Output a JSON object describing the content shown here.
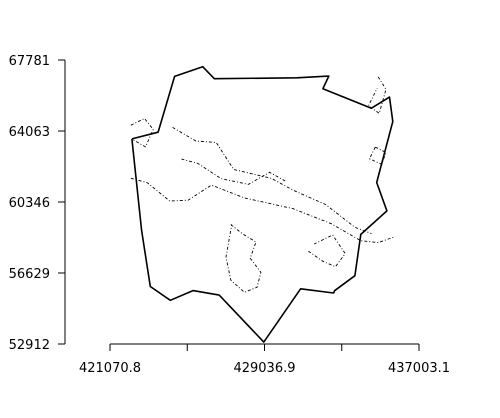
{
  "chart_data": {
    "type": "map",
    "x_axis": {
      "ticks": [
        421070.8,
        425053.85,
        429036.9,
        433020.0,
        437003.1
      ],
      "labels": [
        "421070.8",
        "",
        "429036.9",
        "",
        "437003.1"
      ]
    },
    "y_axis": {
      "ticks": [
        52912,
        56629,
        60346,
        64063,
        67781
      ],
      "labels": [
        "52912",
        "56629",
        "60346",
        "64063",
        "67781"
      ]
    },
    "xlim": [
      419000,
      437600
    ],
    "ylim": [
      52912,
      67781
    ],
    "boundary": [
      [
        422200,
        63650
      ],
      [
        423550,
        64000
      ],
      [
        424400,
        66920
      ],
      [
        425850,
        67430
      ],
      [
        426450,
        66800
      ],
      [
        430700,
        66850
      ],
      [
        432350,
        66940
      ],
      [
        432050,
        66280
      ],
      [
        434550,
        65260
      ],
      [
        435480,
        65840
      ],
      [
        435650,
        64560
      ],
      [
        434820,
        61370
      ],
      [
        435350,
        59880
      ],
      [
        434000,
        58650
      ],
      [
        433700,
        56490
      ],
      [
        432650,
        55700
      ],
      [
        432600,
        55580
      ],
      [
        430900,
        55800
      ],
      [
        429000,
        53010
      ],
      [
        426700,
        55470
      ],
      [
        425350,
        55710
      ],
      [
        424180,
        55200
      ],
      [
        423150,
        55920
      ],
      [
        422700,
        58860
      ],
      [
        422200,
        63650
      ]
    ],
    "detail_lines": [
      [
        [
          422150,
          61590
        ],
        [
          423000,
          61350
        ],
        [
          424150,
          60400
        ],
        [
          425100,
          60440
        ],
        [
          426300,
          61230
        ],
        [
          428000,
          60560
        ],
        [
          430500,
          60000
        ],
        [
          432500,
          59200
        ],
        [
          434000,
          58320
        ],
        [
          434900,
          58220
        ],
        [
          435700,
          58510
        ]
      ],
      [
        [
          424300,
          64250
        ],
        [
          425500,
          63540
        ],
        [
          426550,
          63460
        ],
        [
          427450,
          62050
        ],
        [
          429400,
          61580
        ],
        [
          430500,
          60970
        ],
        [
          432200,
          60210
        ],
        [
          433700,
          59020
        ],
        [
          434550,
          58690
        ]
      ],
      [
        [
          422150,
          64370
        ],
        [
          422850,
          64720
        ],
        [
          423300,
          64150
        ],
        [
          422900,
          63230
        ],
        [
          422200,
          63640
        ]
      ],
      [
        [
          424750,
          62600
        ],
        [
          425600,
          62370
        ],
        [
          426800,
          61570
        ],
        [
          428200,
          61270
        ],
        [
          429300,
          61900
        ],
        [
          430150,
          61420
        ]
      ],
      [
        [
          427300,
          59170
        ],
        [
          427900,
          58680
        ],
        [
          428600,
          58250
        ],
        [
          428300,
          57400
        ],
        [
          428850,
          56660
        ],
        [
          428650,
          55880
        ],
        [
          428000,
          55620
        ],
        [
          427300,
          56260
        ],
        [
          427050,
          57460
        ],
        [
          427350,
          59170
        ]
      ],
      [
        [
          434750,
          63220
        ],
        [
          435300,
          62940
        ],
        [
          435080,
          62320
        ],
        [
          434450,
          62610
        ],
        [
          434750,
          63220
        ]
      ],
      [
        [
          434900,
          66900
        ],
        [
          435300,
          66240
        ],
        [
          434950,
          64990
        ],
        [
          434400,
          65380
        ],
        [
          434850,
          66310
        ]
      ],
      [
        [
          431300,
          57770
        ],
        [
          432050,
          57240
        ],
        [
          432700,
          56960
        ],
        [
          433200,
          57650
        ],
        [
          432550,
          58620
        ],
        [
          431600,
          58150
        ]
      ]
    ]
  }
}
